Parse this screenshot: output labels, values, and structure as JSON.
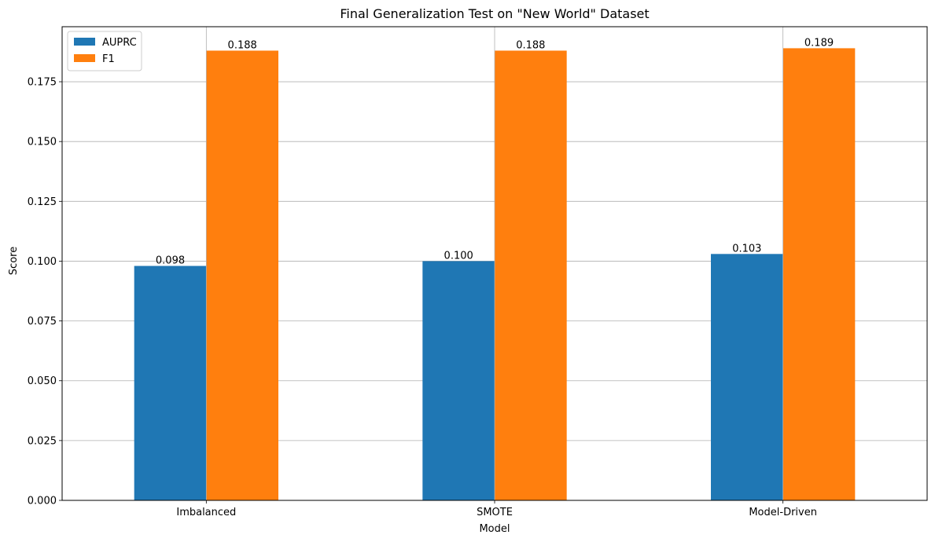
{
  "chart_data": {
    "type": "bar",
    "title": "Final Generalization Test on \"New World\" Dataset",
    "xlabel": "Model",
    "ylabel": "Score",
    "categories": [
      "Imbalanced",
      "SMOTE",
      "Model-Driven"
    ],
    "series": [
      {
        "name": "AUPRC",
        "values": [
          0.098,
          0.1,
          0.103
        ],
        "labels": [
          "0.098",
          "0.100",
          "0.103"
        ],
        "color": "#1f77b4"
      },
      {
        "name": "F1",
        "values": [
          0.188,
          0.188,
          0.189
        ],
        "labels": [
          "0.188",
          "0.188",
          "0.189"
        ],
        "color": "#ff7f0e"
      }
    ],
    "ylim": [
      0,
      0.198
    ],
    "yticks": [
      0.0,
      0.025,
      0.05,
      0.075,
      0.1,
      0.125,
      0.15,
      0.175
    ],
    "ytick_labels": [
      "0.000",
      "0.025",
      "0.050",
      "0.075",
      "0.100",
      "0.125",
      "0.150",
      "0.175"
    ],
    "grid": true,
    "legend_position": "top-left"
  }
}
